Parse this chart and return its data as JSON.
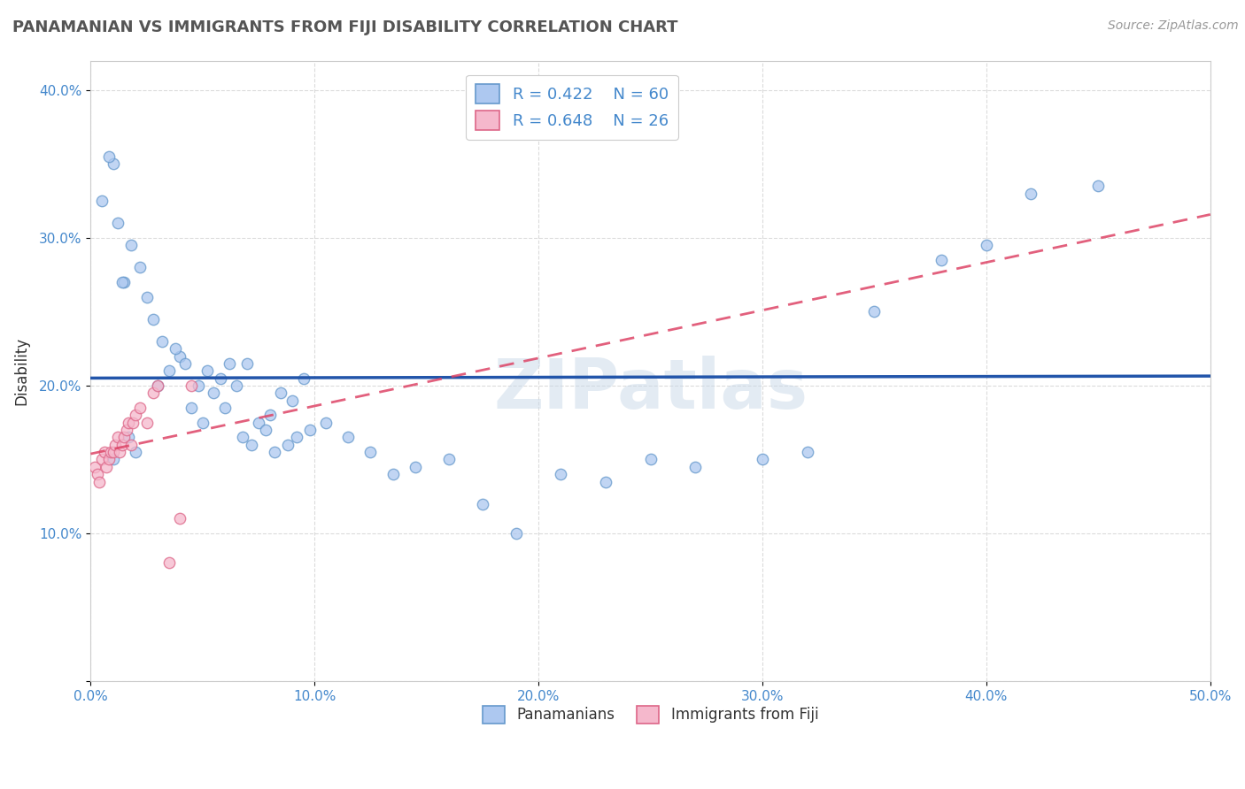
{
  "title": "PANAMANIAN VS IMMIGRANTS FROM FIJI DISABILITY CORRELATION CHART",
  "source": "Source: ZipAtlas.com",
  "ylabel": "Disability",
  "xlim": [
    0.0,
    0.5
  ],
  "ylim": [
    0.0,
    0.42
  ],
  "xticks": [
    0.0,
    0.1,
    0.2,
    0.3,
    0.4,
    0.5
  ],
  "yticks": [
    0.0,
    0.1,
    0.2,
    0.3,
    0.4
  ],
  "xticklabels": [
    "0.0%",
    "10.0%",
    "20.0%",
    "30.0%",
    "40.0%",
    "50.0%"
  ],
  "yticklabels": [
    "",
    "10.0%",
    "20.0%",
    "30.0%",
    "40.0%"
  ],
  "panamanian_color": "#adc8f0",
  "panamanian_edge": "#6699cc",
  "fiji_color": "#f5b8cc",
  "fiji_edge": "#dd6688",
  "line_blue": "#2255aa",
  "line_pink": "#dd4466",
  "r_blue": 0.422,
  "n_blue": 60,
  "r_pink": 0.648,
  "n_pink": 26,
  "legend_label_blue": "Panamanians",
  "legend_label_pink": "Immigrants from Fiji",
  "watermark": "ZIPatlas",
  "panamanian_x": [
    0.01,
    0.02,
    0.03,
    0.035,
    0.04,
    0.045,
    0.05,
    0.055,
    0.06,
    0.065,
    0.07,
    0.075,
    0.08,
    0.085,
    0.09,
    0.095,
    0.01,
    0.012,
    0.015,
    0.018,
    0.022,
    0.025,
    0.028,
    0.032,
    0.038,
    0.042,
    0.048,
    0.052,
    0.058,
    0.062,
    0.068,
    0.072,
    0.078,
    0.082,
    0.088,
    0.092,
    0.098,
    0.105,
    0.115,
    0.125,
    0.135,
    0.145,
    0.16,
    0.175,
    0.19,
    0.21,
    0.23,
    0.25,
    0.27,
    0.3,
    0.32,
    0.35,
    0.38,
    0.4,
    0.42,
    0.45,
    0.005,
    0.008,
    0.014,
    0.017
  ],
  "panamanian_y": [
    0.15,
    0.155,
    0.2,
    0.21,
    0.22,
    0.185,
    0.175,
    0.195,
    0.185,
    0.2,
    0.215,
    0.175,
    0.18,
    0.195,
    0.19,
    0.205,
    0.35,
    0.31,
    0.27,
    0.295,
    0.28,
    0.26,
    0.245,
    0.23,
    0.225,
    0.215,
    0.2,
    0.21,
    0.205,
    0.215,
    0.165,
    0.16,
    0.17,
    0.155,
    0.16,
    0.165,
    0.17,
    0.175,
    0.165,
    0.155,
    0.14,
    0.145,
    0.15,
    0.12,
    0.1,
    0.14,
    0.135,
    0.15,
    0.145,
    0.15,
    0.155,
    0.25,
    0.285,
    0.295,
    0.33,
    0.335,
    0.325,
    0.355,
    0.27,
    0.165
  ],
  "fiji_x": [
    0.002,
    0.003,
    0.004,
    0.005,
    0.006,
    0.007,
    0.008,
    0.009,
    0.01,
    0.011,
    0.012,
    0.013,
    0.014,
    0.015,
    0.016,
    0.017,
    0.018,
    0.019,
    0.02,
    0.022,
    0.025,
    0.028,
    0.03,
    0.035,
    0.04,
    0.045
  ],
  "fiji_y": [
    0.145,
    0.14,
    0.135,
    0.15,
    0.155,
    0.145,
    0.15,
    0.155,
    0.155,
    0.16,
    0.165,
    0.155,
    0.16,
    0.165,
    0.17,
    0.175,
    0.16,
    0.175,
    0.18,
    0.185,
    0.175,
    0.195,
    0.2,
    0.08,
    0.11,
    0.2
  ],
  "background_color": "#ffffff",
  "grid_color": "#cccccc",
  "title_color": "#555555",
  "axis_color": "#4488cc",
  "marker_size": 80
}
